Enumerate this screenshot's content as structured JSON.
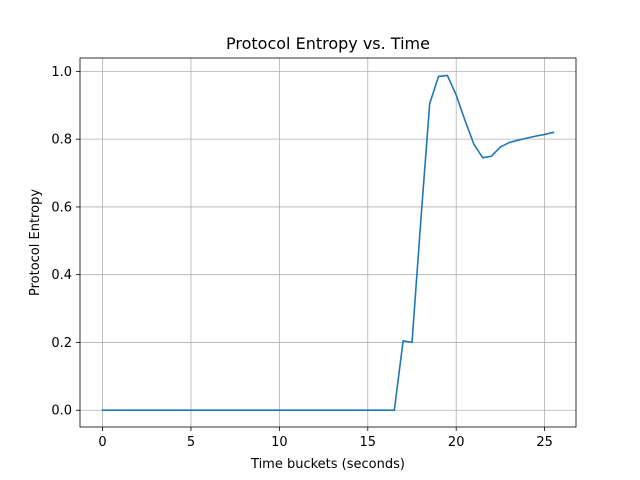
{
  "chart_data": {
    "type": "line",
    "title": "Protocol Entropy vs. Time",
    "xlabel": "Time buckets (seconds)",
    "ylabel": "Protocol Entropy",
    "xlim": [
      -1.275,
      26.775
    ],
    "ylim": [
      -0.0495,
      1.0395
    ],
    "xticks": [
      0,
      5,
      10,
      15,
      20,
      25
    ],
    "yticks": [
      0.0,
      0.2,
      0.4,
      0.6,
      0.8,
      1.0
    ],
    "ytick_labels": [
      "0.0",
      "0.2",
      "0.4",
      "0.6",
      "0.8",
      "1.0"
    ],
    "grid": true,
    "series": [
      {
        "color": "#1f77b4",
        "x": [
          0,
          0.5,
          1,
          1.5,
          2,
          2.5,
          3,
          3.5,
          4,
          4.5,
          5,
          5.5,
          6,
          6.5,
          7,
          7.5,
          8,
          8.5,
          9,
          9.5,
          10,
          10.5,
          11,
          11.5,
          12,
          12.5,
          13,
          13.5,
          14,
          14.5,
          15,
          15.5,
          16,
          16.5,
          17,
          17.5,
          18,
          18.5,
          19,
          19.5,
          20,
          20.5,
          21,
          21.5,
          22,
          22.5,
          23,
          23.5,
          24,
          24.5,
          25,
          25.5
        ],
        "y": [
          0,
          0,
          0,
          0,
          0,
          0,
          0,
          0,
          0,
          0,
          0,
          0,
          0,
          0,
          0,
          0,
          0,
          0,
          0,
          0,
          0,
          0,
          0,
          0,
          0,
          0,
          0,
          0,
          0,
          0,
          0,
          0,
          0,
          0,
          0.205,
          0.2,
          0.56,
          0.905,
          0.985,
          0.988,
          0.93,
          0.855,
          0.785,
          0.745,
          0.75,
          0.777,
          0.79,
          0.797,
          0.803,
          0.809,
          0.814,
          0.82
        ]
      }
    ]
  }
}
